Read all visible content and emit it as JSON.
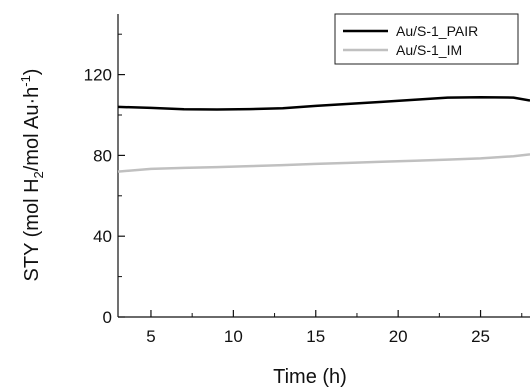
{
  "chart_data": {
    "type": "line",
    "title": "",
    "xlabel": "Time (h)",
    "ylabel": {
      "p1": "STY (mol H",
      "sub": "2",
      "p2": "/mol Au·h",
      "sup": "-1",
      "p3": ")"
    },
    "xlim": [
      3,
      28
    ],
    "ylim": [
      0,
      150
    ],
    "x_ticks": [
      5,
      10,
      15,
      20,
      25
    ],
    "y_ticks": [
      0,
      40,
      80,
      120
    ],
    "grid": false,
    "legend_position": "top-right",
    "series": [
      {
        "name": "Au/S-1_PAIR",
        "color": "#000000",
        "x": [
          3,
          5,
          7,
          9,
          11,
          13,
          15,
          17,
          19,
          21,
          23,
          25,
          27,
          28
        ],
        "y": [
          104,
          103.5,
          102.8,
          102.7,
          102.9,
          103.3,
          104.5,
          105.5,
          106.5,
          107.5,
          108.6,
          108.8,
          108.6,
          107.2
        ]
      },
      {
        "name": "Au/S-1_IM",
        "color": "#c0c0c0",
        "x": [
          3,
          5,
          7,
          9,
          11,
          13,
          15,
          17,
          19,
          21,
          23,
          25,
          27,
          28
        ],
        "y": [
          72,
          73.3,
          73.8,
          74.2,
          74.7,
          75.2,
          75.8,
          76.3,
          76.9,
          77.4,
          77.9,
          78.5,
          79.6,
          80.5
        ]
      }
    ]
  }
}
